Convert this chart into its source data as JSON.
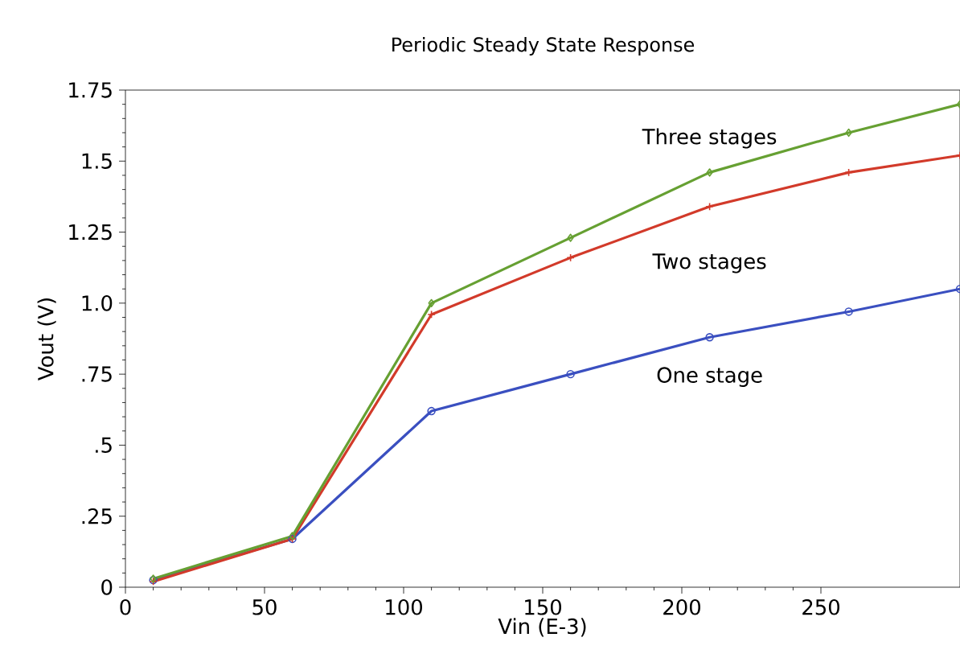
{
  "chart_data": {
    "type": "line",
    "title": "Periodic Steady State Response",
    "xlabel": "Vin (E-3)",
    "ylabel": "Vout (V)",
    "x": [
      10,
      60,
      110,
      160,
      210,
      260,
      300
    ],
    "series": [
      {
        "name": "One stage",
        "color": "#3a4fc0",
        "marker": "circle",
        "values": [
          0.025,
          0.17,
          0.62,
          0.75,
          0.88,
          0.97,
          1.05
        ]
      },
      {
        "name": "Two stages",
        "color": "#d23a2a",
        "marker": "cross",
        "values": [
          0.02,
          0.17,
          0.96,
          1.16,
          1.34,
          1.46,
          1.52
        ]
      },
      {
        "name": "Three stages",
        "color": "#66a032",
        "marker": "diamond",
        "values": [
          0.03,
          0.18,
          1.0,
          1.23,
          1.46,
          1.6,
          1.7
        ]
      }
    ],
    "xlim": [
      0,
      300
    ],
    "ylim": [
      0,
      1.75
    ],
    "xticks": [
      0,
      50,
      100,
      150,
      200,
      250
    ],
    "yticks": [
      0,
      {
        "value": 0.25,
        "label": ".25"
      },
      {
        "value": 0.5,
        "label": ".5"
      },
      {
        "value": 0.75,
        "label": ".75"
      },
      {
        "value": 1.0,
        "label": "1.0"
      },
      1.25,
      1.5,
      1.75
    ],
    "grid": false,
    "legend": false,
    "line_style": "solid"
  }
}
